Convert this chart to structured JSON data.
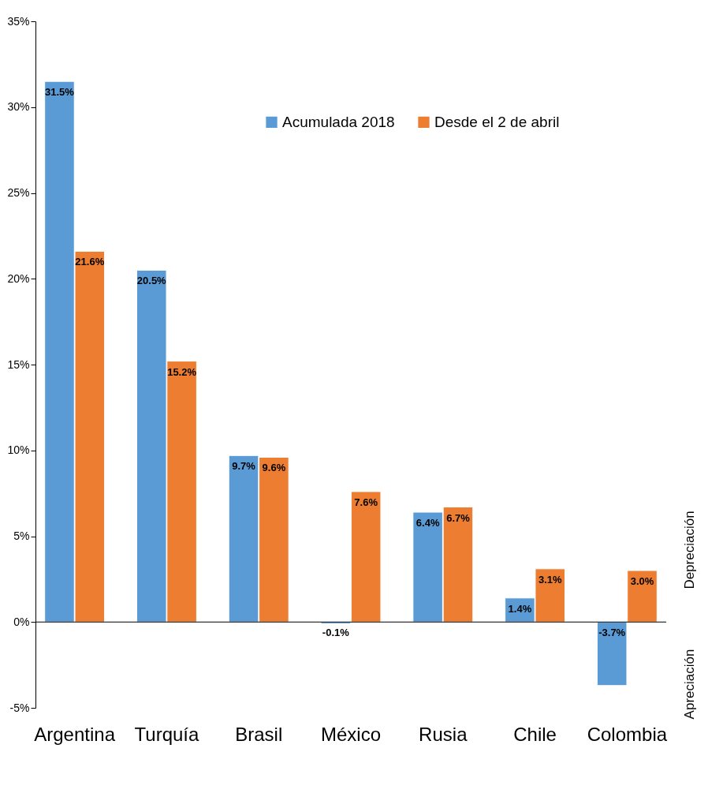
{
  "chart_data": {
    "type": "bar",
    "categories": [
      "Argentina",
      "Turquía",
      "Brasil",
      "México",
      "Rusia",
      "Chile",
      "Colombia"
    ],
    "series": [
      {
        "name": "Acumulada 2018",
        "color": "#5b9bd5",
        "values": [
          31.5,
          20.5,
          9.7,
          -0.1,
          6.4,
          1.4,
          -3.7
        ],
        "value_labels": [
          "31.5%",
          "20.5%",
          "9.7%",
          "-0.1%",
          "6.4%",
          "1.4%",
          "-3.7%"
        ]
      },
      {
        "name": "Desde el 2 de abril",
        "color": "#ed7d31",
        "values": [
          21.6,
          15.2,
          9.6,
          7.6,
          6.7,
          3.1,
          3.0
        ],
        "value_labels": [
          "21.6%",
          "15.2%",
          "9.6%",
          "7.6%",
          "6.7%",
          "3.1%",
          "3.0%"
        ]
      }
    ],
    "ylim": [
      -5,
      35
    ],
    "yticks": [
      {
        "value": -5,
        "label": "-5%"
      },
      {
        "value": 0,
        "label": "0%"
      },
      {
        "value": 5,
        "label": "5%"
      },
      {
        "value": 10,
        "label": "10%"
      },
      {
        "value": 15,
        "label": "15%"
      },
      {
        "value": 20,
        "label": "20%"
      },
      {
        "value": 25,
        "label": "25%"
      },
      {
        "value": 30,
        "label": "30%"
      },
      {
        "value": 35,
        "label": "35%"
      }
    ],
    "annotations": [
      "Depreciación",
      "Apreciación"
    ],
    "legend": "top"
  }
}
